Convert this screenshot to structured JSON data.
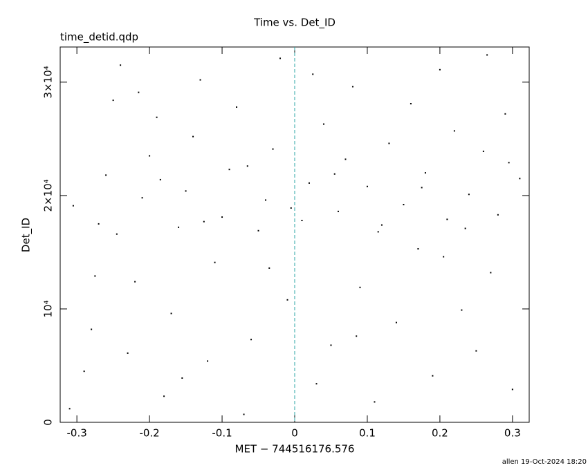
{
  "chart_data": {
    "type": "scatter",
    "title": "Time vs. Det_ID",
    "subtitle": "time_detid.qdp",
    "x_label": "MET − 744516176.576",
    "y_label": "Det_ID",
    "footer": "allen 19-Oct-2024 18:20",
    "xlim": [
      -0.323,
      0.323
    ],
    "ylim": [
      0,
      33100
    ],
    "xticks": [
      -0.3,
      -0.2,
      -0.1,
      0,
      0.1,
      0.2,
      0.3
    ],
    "yticks": [
      0,
      {
        "value": 10000,
        "label": "10⁴"
      },
      {
        "value": 20000,
        "label": "2×10⁴"
      },
      {
        "value": 30000,
        "label": "3×10⁴"
      }
    ],
    "vline": 0,
    "vline_color": "#2aa6a6",
    "color": "#000000",
    "x": [
      -0.31,
      -0.29,
      -0.28,
      -0.27,
      -0.26,
      -0.25,
      -0.24,
      -0.23,
      -0.22,
      -0.21,
      -0.2,
      -0.19,
      -0.18,
      -0.17,
      -0.16,
      -0.15,
      -0.14,
      -0.13,
      -0.12,
      -0.11,
      -0.1,
      -0.09,
      -0.08,
      -0.07,
      -0.06,
      -0.05,
      -0.04,
      -0.03,
      -0.02,
      -0.01,
      0.01,
      0.02,
      0.03,
      0.04,
      0.05,
      0.06,
      0.07,
      0.08,
      0.09,
      0.1,
      0.11,
      0.12,
      0.13,
      0.14,
      0.15,
      0.16,
      0.17,
      0.18,
      0.19,
      0.2,
      0.21,
      0.22,
      0.23,
      0.24,
      0.25,
      0.26,
      0.27,
      0.28,
      0.29,
      0.3,
      0.31,
      -0.305,
      -0.245,
      -0.185,
      -0.125,
      -0.065,
      -0.005,
      0.055,
      0.115,
      0.175,
      0.235,
      0.295,
      -0.275,
      -0.155,
      -0.035,
      0.085,
      0.205,
      -0.215,
      0.025,
      0.265
    ],
    "y": [
      1200,
      4500,
      8200,
      17500,
      21800,
      28400,
      31500,
      6100,
      12400,
      19800,
      23500,
      26900,
      2300,
      9600,
      17200,
      20400,
      25200,
      30200,
      5400,
      14100,
      18100,
      22300,
      27800,
      700,
      7300,
      16900,
      19600,
      24100,
      32100,
      10800,
      17800,
      21100,
      3400,
      26300,
      6800,
      18600,
      23200,
      29600,
      11900,
      20800,
      1800,
      17400,
      24600,
      8800,
      19200,
      28100,
      15300,
      22000,
      4100,
      31100,
      17900,
      25700,
      9900,
      20100,
      6300,
      23900,
      13200,
      18300,
      27200,
      2900,
      21500,
      19100,
      16600,
      21400,
      17700,
      22600,
      18900,
      21900,
      16800,
      20700,
      17100,
      22900,
      12900,
      3900,
      13600,
      7600,
      14600,
      29100,
      30700,
      32400
    ]
  }
}
